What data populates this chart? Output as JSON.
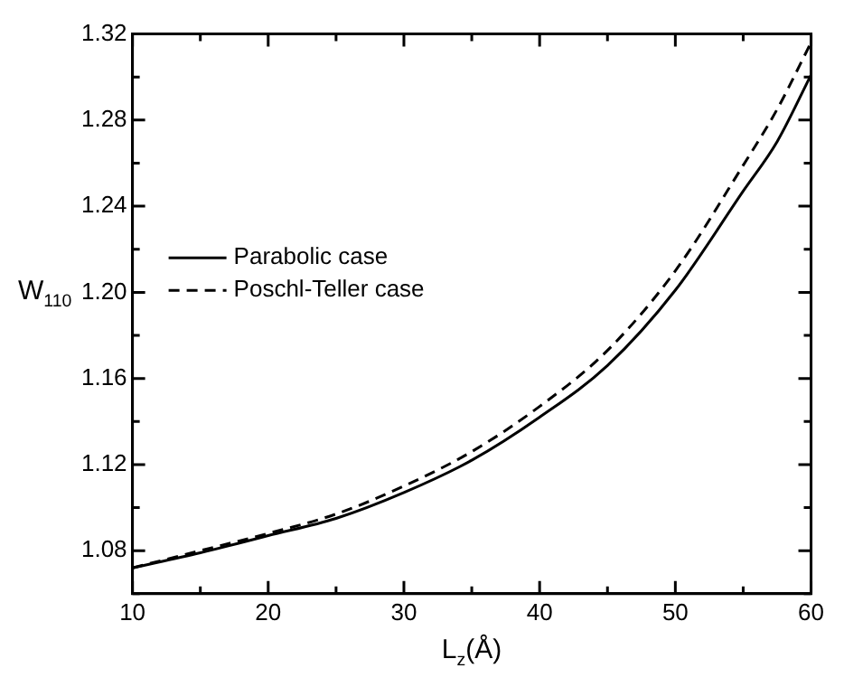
{
  "chart_data": {
    "type": "line",
    "xlabel": "L$_{z}$(Å)",
    "ylabel": "W$_{110}$",
    "x": [
      10,
      15,
      20,
      25,
      30,
      35,
      40,
      45,
      50,
      55,
      57.5,
      60
    ],
    "series": [
      {
        "name": "Parabolic case",
        "color": "#000000",
        "line_style": "solid",
        "values": [
          1.072,
          1.079,
          1.087,
          1.095,
          1.107,
          1.122,
          1.142,
          1.166,
          1.201,
          1.247,
          1.27,
          1.301
        ]
      },
      {
        "name": "Poschl-Teller case",
        "color": "#000000",
        "line_style": "dashed",
        "values": [
          1.072,
          1.08,
          1.088,
          1.097,
          1.11,
          1.126,
          1.147,
          1.173,
          1.21,
          1.259,
          1.285,
          1.316
        ]
      }
    ],
    "xlim": [
      10,
      60
    ],
    "xticks": [
      10,
      {
        "value": 15,
        "label": null
      },
      20,
      {
        "value": 25,
        "label": null
      },
      30,
      {
        "value": 35,
        "label": null
      },
      40,
      {
        "value": 45,
        "label": null
      },
      50,
      {
        "value": 55,
        "label": null
      },
      60
    ],
    "ylim": [
      1.06,
      1.32
    ],
    "yticks": [
      {
        "value": 1.06,
        "label": null
      },
      {
        "value": 1.08,
        "label": "1.08"
      },
      {
        "value": 1.1,
        "label": null
      },
      {
        "value": 1.12,
        "label": "1.12"
      },
      {
        "value": 1.14,
        "label": null
      },
      {
        "value": 1.16,
        "label": "1.16"
      },
      {
        "value": 1.18,
        "label": null
      },
      {
        "value": 1.2,
        "label": "1.20"
      },
      {
        "value": 1.22,
        "label": null
      },
      {
        "value": 1.24,
        "label": "1.24"
      },
      {
        "value": 1.26,
        "label": null
      },
      {
        "value": 1.28,
        "label": "1.28"
      },
      {
        "value": 1.3,
        "label": null
      },
      {
        "value": 1.32,
        "label": "1.32"
      }
    ],
    "grid": false,
    "legend": "left",
    "marker": "none"
  }
}
